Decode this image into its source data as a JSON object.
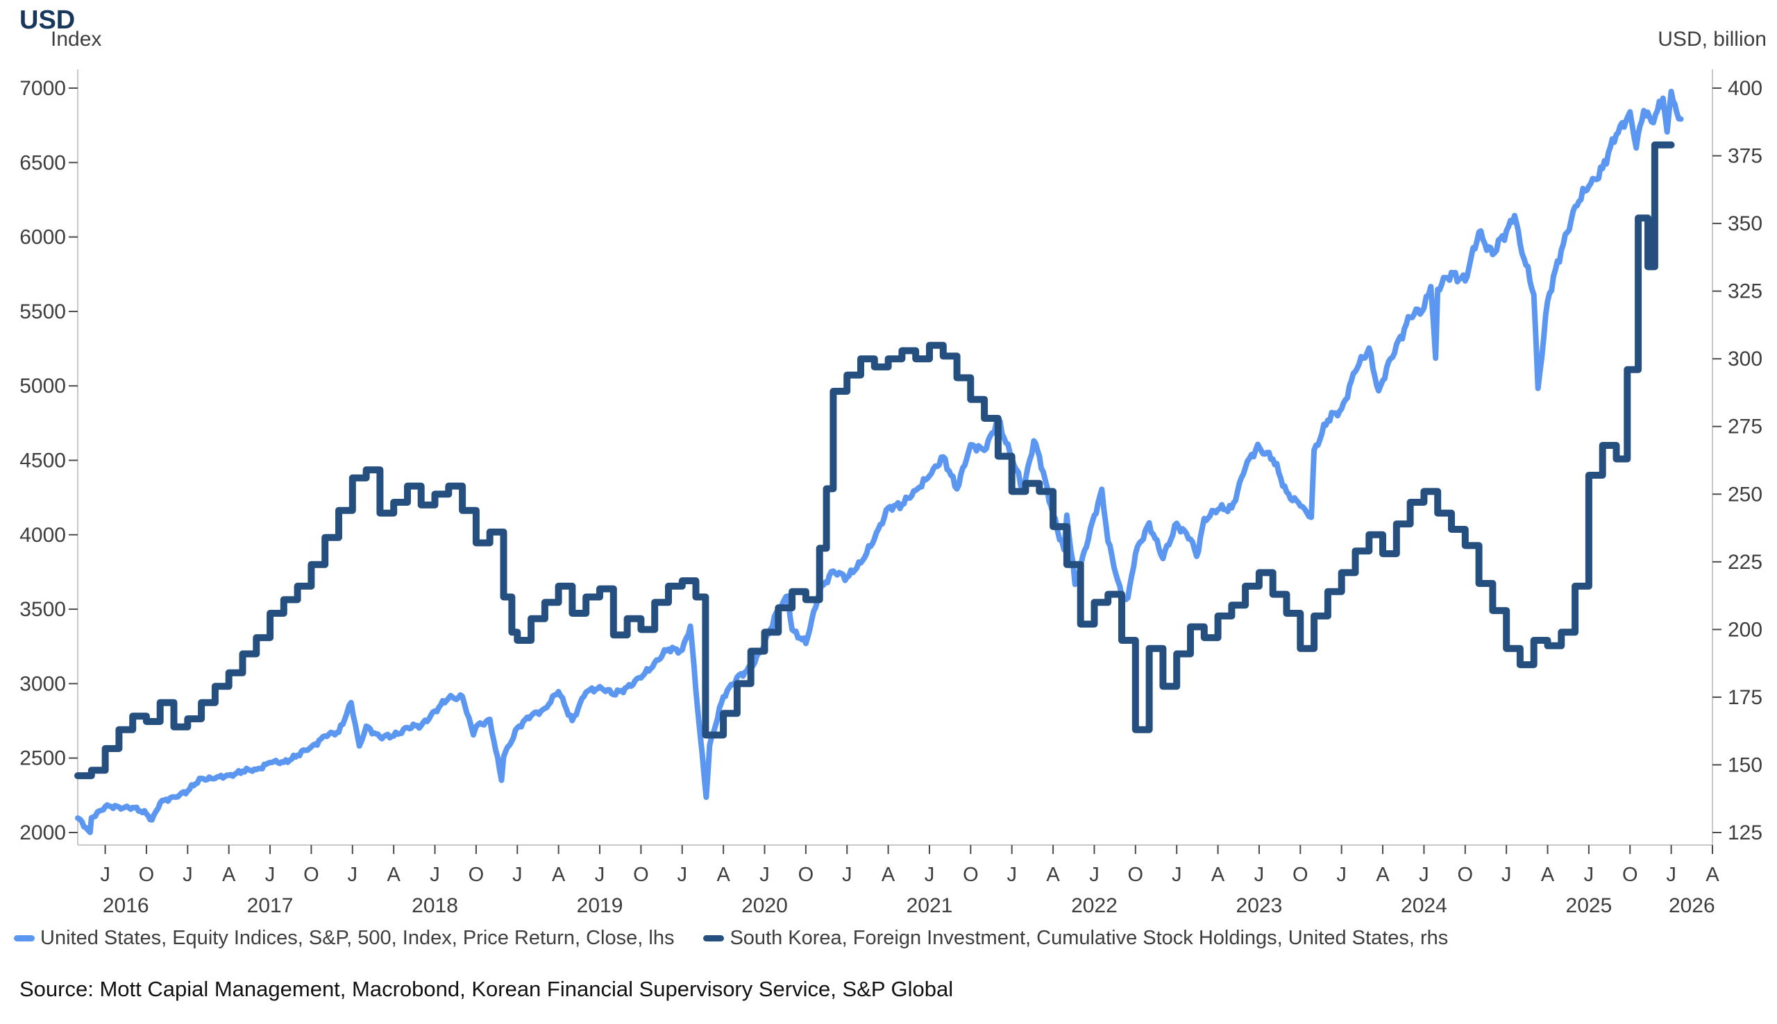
{
  "header": {
    "title": "USD",
    "left_axis_caption": "Index",
    "right_axis_caption": "USD, billion"
  },
  "legend": {
    "series1_label": "United States, Equity Indices, S&P, 500, Index, Price Return, Close, lhs",
    "series2_label": "South Korea, Foreign Investment, Cumulative Stock Holdings, United States, rhs"
  },
  "source_line": "Source: Mott Capial Management, Macrobond, Korean Financial Supervisory Service, S&P Global",
  "colors": {
    "title": "#17375d",
    "sp500_line": "#5b97f0",
    "korea_line": "#254f7e",
    "axis_line": "#c9c9c9",
    "tick_mark": "#4a4a4a",
    "tick_text": "#3d3d3d"
  },
  "chart_data": {
    "type": "line",
    "title": "USD",
    "left_axis": {
      "label": "Index",
      "min": 2000,
      "max": 7000,
      "step": 500,
      "ticks": [
        7000,
        6500,
        6000,
        5500,
        5000,
        4500,
        4000,
        3500,
        3000,
        2500,
        2000
      ]
    },
    "right_axis": {
      "label": "USD, billion",
      "min": 125,
      "max": 400,
      "step": 25,
      "ticks": [
        400,
        375,
        350,
        325,
        300,
        275,
        250,
        225,
        200,
        175,
        150,
        125
      ]
    },
    "x_axis": {
      "start_month": "2016-05",
      "end_month": "2026-04",
      "total_months": 119,
      "grid": false,
      "month_ticks": [
        [
          2,
          "J"
        ],
        [
          5,
          "O"
        ],
        [
          8,
          "J"
        ],
        [
          11,
          "A"
        ],
        [
          14,
          "J"
        ],
        [
          17,
          "O"
        ],
        [
          20,
          "J"
        ],
        [
          23,
          "A"
        ],
        [
          26,
          "J"
        ],
        [
          29,
          "O"
        ],
        [
          32,
          "J"
        ],
        [
          35,
          "A"
        ],
        [
          38,
          "J"
        ],
        [
          41,
          "O"
        ],
        [
          44,
          "J"
        ],
        [
          47,
          "A"
        ],
        [
          50,
          "J"
        ],
        [
          53,
          "O"
        ],
        [
          56,
          "J"
        ],
        [
          59,
          "A"
        ],
        [
          62,
          "J"
        ],
        [
          65,
          "O"
        ],
        [
          68,
          "J"
        ],
        [
          71,
          "A"
        ],
        [
          74,
          "J"
        ],
        [
          77,
          "O"
        ],
        [
          80,
          "J"
        ],
        [
          83,
          "A"
        ],
        [
          86,
          "J"
        ],
        [
          89,
          "O"
        ],
        [
          92,
          "J"
        ],
        [
          95,
          "A"
        ],
        [
          98,
          "J"
        ],
        [
          101,
          "O"
        ],
        [
          104,
          "J"
        ],
        [
          107,
          "A"
        ],
        [
          110,
          "J"
        ],
        [
          113,
          "O"
        ],
        [
          116,
          "J"
        ],
        [
          119,
          "A"
        ]
      ],
      "year_labels": [
        [
          3.5,
          "2016"
        ],
        [
          14,
          "2017"
        ],
        [
          26,
          "2018"
        ],
        [
          38,
          "2019"
        ],
        [
          50,
          "2020"
        ],
        [
          62,
          "2021"
        ],
        [
          74,
          "2022"
        ],
        [
          86,
          "2023"
        ],
        [
          98,
          "2024"
        ],
        [
          110,
          "2025"
        ],
        [
          117.5,
          "2026"
        ]
      ]
    },
    "legend_position": "bottom",
    "series": [
      {
        "name": "United States, Equity Indices, S&P, 500, Index, Price Return, Close, lhs",
        "axis": "left",
        "style": "line",
        "color": "#5b97f0",
        "stroke_width": 8,
        "points": [
          [
            0,
            2097
          ],
          [
            0.9,
            2001
          ],
          [
            1,
            2099
          ],
          [
            2,
            2174
          ],
          [
            3,
            2171
          ],
          [
            4,
            2168
          ],
          [
            5,
            2126
          ],
          [
            5.4,
            2085
          ],
          [
            6,
            2199
          ],
          [
            7,
            2239
          ],
          [
            8,
            2279
          ],
          [
            9,
            2364
          ],
          [
            10,
            2363
          ],
          [
            11,
            2384
          ],
          [
            12,
            2412
          ],
          [
            13,
            2423
          ],
          [
            14,
            2470
          ],
          [
            15,
            2472
          ],
          [
            16,
            2519
          ],
          [
            17,
            2575
          ],
          [
            18,
            2648
          ],
          [
            19,
            2674
          ],
          [
            19.9,
            2873
          ],
          [
            20.5,
            2581
          ],
          [
            21,
            2714
          ],
          [
            22,
            2641
          ],
          [
            23,
            2648
          ],
          [
            24,
            2705
          ],
          [
            25,
            2718
          ],
          [
            26,
            2816
          ],
          [
            27,
            2902
          ],
          [
            28,
            2914
          ],
          [
            28.8,
            2656
          ],
          [
            29,
            2712
          ],
          [
            30,
            2760
          ],
          [
            30.85,
            2351
          ],
          [
            31,
            2507
          ],
          [
            32,
            2704
          ],
          [
            33,
            2784
          ],
          [
            34,
            2834
          ],
          [
            35,
            2946
          ],
          [
            36,
            2752
          ],
          [
            37,
            2942
          ],
          [
            38,
            2980
          ],
          [
            39,
            2926
          ],
          [
            40,
            2977
          ],
          [
            41,
            3038
          ],
          [
            42,
            3141
          ],
          [
            43,
            3231
          ],
          [
            44,
            3226
          ],
          [
            44.6,
            3386
          ],
          [
            45,
            2954
          ],
          [
            45.75,
            2237
          ],
          [
            46,
            2585
          ],
          [
            47,
            2912
          ],
          [
            48,
            3044
          ],
          [
            49,
            3100
          ],
          [
            50,
            3271
          ],
          [
            51,
            3500
          ],
          [
            51.7,
            3588
          ],
          [
            52,
            3363
          ],
          [
            53,
            3270
          ],
          [
            54,
            3622
          ],
          [
            55,
            3756
          ],
          [
            56,
            3714
          ],
          [
            57,
            3811
          ],
          [
            58,
            3973
          ],
          [
            59,
            4181
          ],
          [
            60,
            4204
          ],
          [
            61,
            4298
          ],
          [
            62,
            4395
          ],
          [
            63,
            4523
          ],
          [
            64,
            4308
          ],
          [
            65,
            4605
          ],
          [
            66,
            4567
          ],
          [
            67,
            4766
          ],
          [
            68,
            4516
          ],
          [
            68.8,
            4306
          ],
          [
            69,
            4374
          ],
          [
            69.6,
            4631
          ],
          [
            70,
            4530
          ],
          [
            71,
            4132
          ],
          [
            71.8,
            3900
          ],
          [
            72,
            4132
          ],
          [
            72.6,
            3667
          ],
          [
            73,
            3785
          ],
          [
            74,
            4130
          ],
          [
            74.55,
            4305
          ],
          [
            75,
            3955
          ],
          [
            76,
            3586
          ],
          [
            76.45,
            3577
          ],
          [
            77,
            3872
          ],
          [
            78,
            4080
          ],
          [
            79,
            3840
          ],
          [
            80,
            4077
          ],
          [
            81,
            3970
          ],
          [
            81.45,
            3855
          ],
          [
            82,
            4109
          ],
          [
            83,
            4169
          ],
          [
            84,
            4180
          ],
          [
            85,
            4450
          ],
          [
            85.9,
            4607
          ],
          [
            86,
            4589
          ],
          [
            87,
            4508
          ],
          [
            88,
            4288
          ],
          [
            89,
            4194
          ],
          [
            89.8,
            4117
          ],
          [
            90,
            4568
          ],
          [
            91,
            4770
          ],
          [
            92,
            4846
          ],
          [
            93,
            5096
          ],
          [
            94,
            5254
          ],
          [
            94.7,
            4967
          ],
          [
            95,
            5036
          ],
          [
            96,
            5278
          ],
          [
            97,
            5460
          ],
          [
            98,
            5522
          ],
          [
            98.5,
            5667
          ],
          [
            98.85,
            5186
          ],
          [
            99,
            5648
          ],
          [
            100,
            5762
          ],
          [
            101,
            5705
          ],
          [
            102,
            6032
          ],
          [
            103,
            5882
          ],
          [
            104,
            6041
          ],
          [
            104.6,
            6144
          ],
          [
            105,
            5955
          ],
          [
            106,
            5612
          ],
          [
            106.3,
            4983
          ],
          [
            107,
            5569
          ],
          [
            108,
            5912
          ],
          [
            109,
            6205
          ],
          [
            110,
            6340
          ],
          [
            111,
            6460
          ],
          [
            112,
            6688
          ],
          [
            113,
            6840
          ],
          [
            113.45,
            6598
          ],
          [
            114,
            6849
          ],
          [
            114.7,
            6768
          ],
          [
            115,
            6850
          ],
          [
            115.4,
            6932
          ],
          [
            115.7,
            6706
          ],
          [
            116,
            6977
          ],
          [
            116.4,
            6838
          ],
          [
            116.7,
            6792
          ]
        ]
      },
      {
        "name": "South Korea, Foreign Investment, Cumulative Stock Holdings, United States, rhs",
        "axis": "right",
        "style": "step",
        "color": "#254f7e",
        "stroke_width": 10,
        "end_i": 116.0,
        "points": [
          [
            0,
            146
          ],
          [
            1,
            148
          ],
          [
            2,
            156
          ],
          [
            3,
            163
          ],
          [
            4,
            168
          ],
          [
            5,
            166
          ],
          [
            6,
            173
          ],
          [
            7,
            164
          ],
          [
            8,
            167
          ],
          [
            9,
            173
          ],
          [
            10,
            179
          ],
          [
            11,
            184
          ],
          [
            12,
            191
          ],
          [
            13,
            197
          ],
          [
            14,
            206
          ],
          [
            15,
            211
          ],
          [
            16,
            216
          ],
          [
            17,
            224
          ],
          [
            18,
            234
          ],
          [
            19,
            244
          ],
          [
            20,
            256
          ],
          [
            21,
            259
          ],
          [
            22,
            243
          ],
          [
            23,
            247
          ],
          [
            24,
            253
          ],
          [
            25,
            246
          ],
          [
            26,
            250
          ],
          [
            27,
            253
          ],
          [
            28,
            244
          ],
          [
            29,
            232
          ],
          [
            30,
            236
          ],
          [
            31,
            212
          ],
          [
            31.6,
            199
          ],
          [
            32,
            196
          ],
          [
            33,
            204
          ],
          [
            34,
            210
          ],
          [
            35,
            216
          ],
          [
            36,
            206
          ],
          [
            37,
            212
          ],
          [
            38,
            215
          ],
          [
            39,
            198
          ],
          [
            40,
            204
          ],
          [
            41,
            200
          ],
          [
            42,
            210
          ],
          [
            43,
            216
          ],
          [
            44,
            218
          ],
          [
            45,
            212
          ],
          [
            45.7,
            161
          ],
          [
            47,
            169
          ],
          [
            48,
            180
          ],
          [
            49,
            192
          ],
          [
            50,
            199
          ],
          [
            51,
            208
          ],
          [
            52,
            214
          ],
          [
            53,
            211
          ],
          [
            54,
            230
          ],
          [
            54.5,
            252
          ],
          [
            55,
            288
          ],
          [
            56,
            294
          ],
          [
            57,
            300
          ],
          [
            58,
            297
          ],
          [
            59,
            300
          ],
          [
            60,
            303
          ],
          [
            61,
            300
          ],
          [
            62,
            305
          ],
          [
            63,
            301
          ],
          [
            64,
            293
          ],
          [
            65,
            285
          ],
          [
            66,
            278
          ],
          [
            67,
            264
          ],
          [
            68,
            251
          ],
          [
            69,
            254
          ],
          [
            70,
            251
          ],
          [
            71,
            238
          ],
          [
            72,
            224
          ],
          [
            73,
            202
          ],
          [
            74,
            210
          ],
          [
            75,
            213
          ],
          [
            76,
            196
          ],
          [
            77,
            163
          ],
          [
            78,
            193
          ],
          [
            79,
            179
          ],
          [
            80,
            191
          ],
          [
            81,
            201
          ],
          [
            82,
            197
          ],
          [
            83,
            205
          ],
          [
            84,
            209
          ],
          [
            85,
            216
          ],
          [
            86,
            221
          ],
          [
            87,
            213
          ],
          [
            88,
            206
          ],
          [
            89,
            193
          ],
          [
            90,
            205
          ],
          [
            91,
            214
          ],
          [
            92,
            221
          ],
          [
            93,
            229
          ],
          [
            94,
            235
          ],
          [
            95,
            228
          ],
          [
            96,
            239
          ],
          [
            97,
            247
          ],
          [
            98,
            251
          ],
          [
            99,
            243
          ],
          [
            100,
            237
          ],
          [
            101,
            231
          ],
          [
            102,
            217
          ],
          [
            103,
            207
          ],
          [
            104,
            193
          ],
          [
            105,
            187
          ],
          [
            106,
            196
          ],
          [
            107,
            194
          ],
          [
            108,
            199
          ],
          [
            109,
            216
          ],
          [
            110,
            257
          ],
          [
            111,
            268
          ],
          [
            112,
            263
          ],
          [
            112.8,
            296
          ],
          [
            113.6,
            352
          ],
          [
            114.3,
            334
          ],
          [
            114.8,
            379
          ]
        ]
      }
    ]
  }
}
